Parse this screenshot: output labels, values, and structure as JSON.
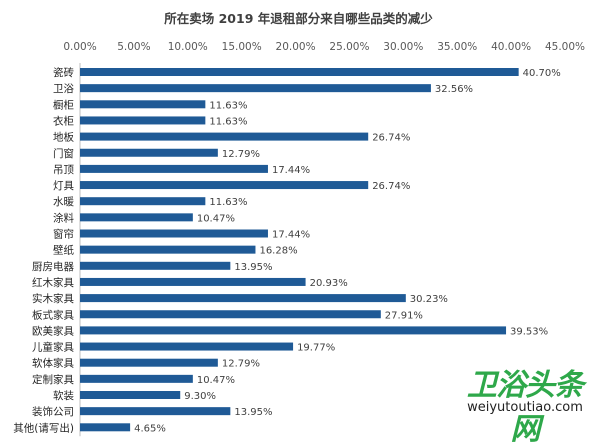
{
  "chart_data": {
    "type": "bar",
    "orientation": "horizontal",
    "title": "所在卖场 2019 年退租部分来自哪些品类的减少",
    "xlim": [
      0,
      45
    ],
    "x_ticks": [
      "0.00%",
      "5.00%",
      "10.00%",
      "15.00%",
      "20.00%",
      "25.00%",
      "30.00%",
      "35.00%",
      "40.00%",
      "45.00%"
    ],
    "x_axis_position": "top",
    "grid": false,
    "bar_color": "#1f5a96",
    "categories": [
      "瓷砖",
      "卫浴",
      "橱柜",
      "衣柜",
      "地板",
      "门窗",
      "吊顶",
      "灯具",
      "水暖",
      "涂料",
      "窗帘",
      "壁纸",
      "厨房电器",
      "红木家具",
      "实木家具",
      "板式家具",
      "欧美家具",
      "儿童家具",
      "软体家具",
      "定制家具",
      "软装",
      "装饰公司",
      "其他(请写出)"
    ],
    "values": [
      40.7,
      32.56,
      11.63,
      11.63,
      26.74,
      12.79,
      17.44,
      26.74,
      11.63,
      10.47,
      17.44,
      16.28,
      13.95,
      20.93,
      30.23,
      27.91,
      39.53,
      19.77,
      12.79,
      10.47,
      9.3,
      13.95,
      4.65
    ],
    "value_labels": [
      "40.70%",
      "32.56%",
      "11.63%",
      "11.63%",
      "26.74%",
      "12.79%",
      "17.44%",
      "26.74%",
      "11.63%",
      "10.47%",
      "17.44%",
      "16.28%",
      "13.95%",
      "20.93%",
      "30.23%",
      "27.91%",
      "39.53%",
      "19.77%",
      "12.79%",
      "10.47%",
      "9.30%",
      "13.95%",
      "4.65%"
    ]
  },
  "watermark": {
    "logo_text": "卫浴头条网",
    "url": "weiyutoutiao.com"
  }
}
